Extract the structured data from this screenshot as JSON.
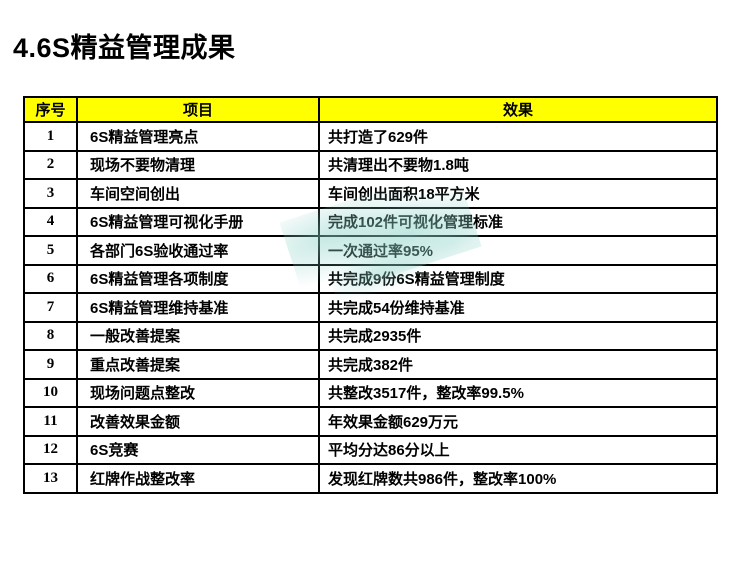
{
  "title": "4.6S精益管理成果",
  "table": {
    "headers": [
      "序号",
      "项目",
      "效果"
    ],
    "rows": [
      {
        "no": "1",
        "project": "6S精益管理亮点",
        "effect": "共打造了629件"
      },
      {
        "no": "2",
        "project": "现场不要物清理",
        "effect": "共清理出不要物1.8吨"
      },
      {
        "no": "3",
        "project": "车间空间创出",
        "effect": "车间创出面积18平方米"
      },
      {
        "no": "4",
        "project": "6S精益管理可视化手册",
        "effect": "完成102件可视化管理标准"
      },
      {
        "no": "5",
        "project": "各部门6S验收通过率",
        "effect": "一次通过率95%"
      },
      {
        "no": "6",
        "project": "6S精益管理各项制度",
        "effect": "共完成9份6S精益管理制度"
      },
      {
        "no": "7",
        "project": "6S精益管理维持基准",
        "effect": "共完成54份维持基准"
      },
      {
        "no": "8",
        "project": "一般改善提案",
        "effect": "共完成2935件"
      },
      {
        "no": "9",
        "project": "重点改善提案",
        "effect": "共完成382件"
      },
      {
        "no": "10",
        "project": "现场问题点整改",
        "effect": "共整改3517件，整改率99.5%"
      },
      {
        "no": "11",
        "project": "改善效果金额",
        "effect": "年效果金额629万元"
      },
      {
        "no": "12",
        "project": "6S竞赛",
        "effect": "平均分达86分以上"
      },
      {
        "no": "13",
        "project": "红牌作战整改率",
        "effect": "发现红牌数共986件，整改率100%"
      }
    ]
  },
  "colors": {
    "header_bg": "#FFFF00",
    "border": "#000000",
    "text": "#000000",
    "watermark": "#8CD2C8"
  }
}
